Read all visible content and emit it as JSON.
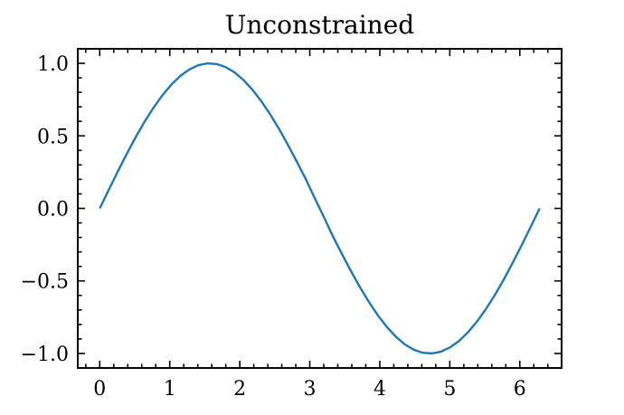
{
  "chart_data": {
    "type": "line",
    "title": "Unconstrained",
    "xlabel": "",
    "ylabel": "",
    "xlim": [
      -0.314,
      6.597
    ],
    "ylim": [
      -1.1,
      1.1
    ],
    "x_ticks": [
      0,
      1,
      2,
      3,
      4,
      5,
      6
    ],
    "x_tick_labels": [
      "0",
      "1",
      "2",
      "3",
      "4",
      "5",
      "6"
    ],
    "y_ticks": [
      -1.0,
      -0.5,
      0.0,
      0.5,
      1.0
    ],
    "y_tick_labels": [
      "−1.0",
      "−0.5",
      "0.0",
      "0.5",
      "1.0"
    ],
    "grid": false,
    "series": [
      {
        "color": "#1f77b4",
        "x": [
          0,
          0.1282,
          0.2565,
          0.3847,
          0.5129,
          0.6411,
          0.7694,
          0.8976,
          1.0258,
          1.1541,
          1.2823,
          1.4105,
          1.5387,
          1.667,
          1.7952,
          1.9234,
          2.0517,
          2.1799,
          2.3081,
          2.4363,
          2.5646,
          2.6928,
          2.821,
          2.9493,
          3.0775,
          3.2057,
          3.3339,
          3.4622,
          3.5904,
          3.7186,
          3.8469,
          3.9751,
          4.1033,
          4.2315,
          4.3598,
          4.488,
          4.6162,
          4.7445,
          4.8727,
          5.0009,
          5.1291,
          5.2574,
          5.3856,
          5.5138,
          5.6421,
          5.7703,
          5.8985,
          6.0267,
          6.155,
          6.2832
        ],
        "y": [
          0,
          0.1279,
          0.2537,
          0.3753,
          0.4907,
          0.5981,
          0.6957,
          0.7818,
          0.8551,
          0.9147,
          0.9587,
          0.9874,
          0.9995,
          0.9955,
          0.9749,
          0.938,
          0.8855,
          0.8187,
          0.7386,
          0.6467,
          0.5445,
          0.4339,
          0.3169,
          0.1958,
          0.0641,
          -0.0641,
          -0.1958,
          -0.3169,
          -0.4339,
          -0.5445,
          -0.6467,
          -0.7386,
          -0.8187,
          -0.8855,
          -0.938,
          -0.9749,
          -0.9955,
          -0.9995,
          -0.9874,
          -0.9587,
          -0.9147,
          -0.8551,
          -0.7818,
          -0.6957,
          -0.5981,
          -0.4907,
          -0.3753,
          -0.2537,
          -0.1279,
          0
        ]
      }
    ]
  }
}
